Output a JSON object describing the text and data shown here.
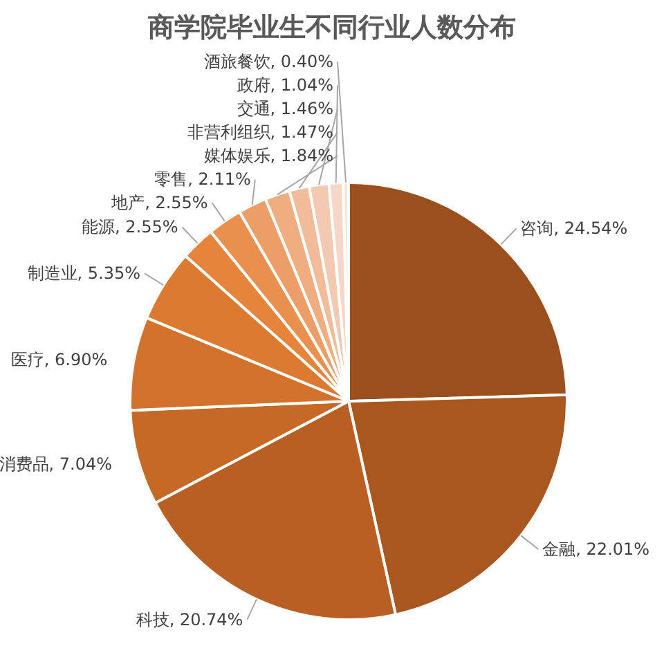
{
  "chart_data": {
    "type": "pie",
    "title": "商学院毕业生不同行业人数分布",
    "value_labels": [
      ", 24.54%",
      ", 22.01%",
      ", 20.74%",
      ", 7.04%",
      ", 6.90%",
      ", 5.35%",
      ", 2.55%",
      ", 2.55%",
      ", 2.11%",
      ", 1.84%",
      ", 1.47%",
      ", 1.46%",
      ", 1.04%",
      ", 0.40%"
    ],
    "categories": [
      "咨询",
      "金融",
      "科技",
      "消费品",
      "医疗",
      "制造业",
      "能源",
      "地产",
      "零售",
      "媒体娱乐",
      "非营利组织",
      "交通",
      "政府",
      "酒旅餐饮"
    ],
    "values": [
      24.54,
      22.01,
      20.74,
      7.04,
      6.9,
      5.35,
      2.55,
      2.55,
      2.11,
      1.84,
      1.47,
      1.46,
      1.04,
      0.4
    ],
    "colors": [
      "#9c4f1e",
      "#a9561f",
      "#b95f24",
      "#c66826",
      "#d2722c",
      "#dc7a32",
      "#e6843c",
      "#ea904f",
      "#ed9e66",
      "#efad80",
      "#f2bc9a",
      "#f4c9b1",
      "#f6d6c7",
      "#f8e4da"
    ]
  }
}
